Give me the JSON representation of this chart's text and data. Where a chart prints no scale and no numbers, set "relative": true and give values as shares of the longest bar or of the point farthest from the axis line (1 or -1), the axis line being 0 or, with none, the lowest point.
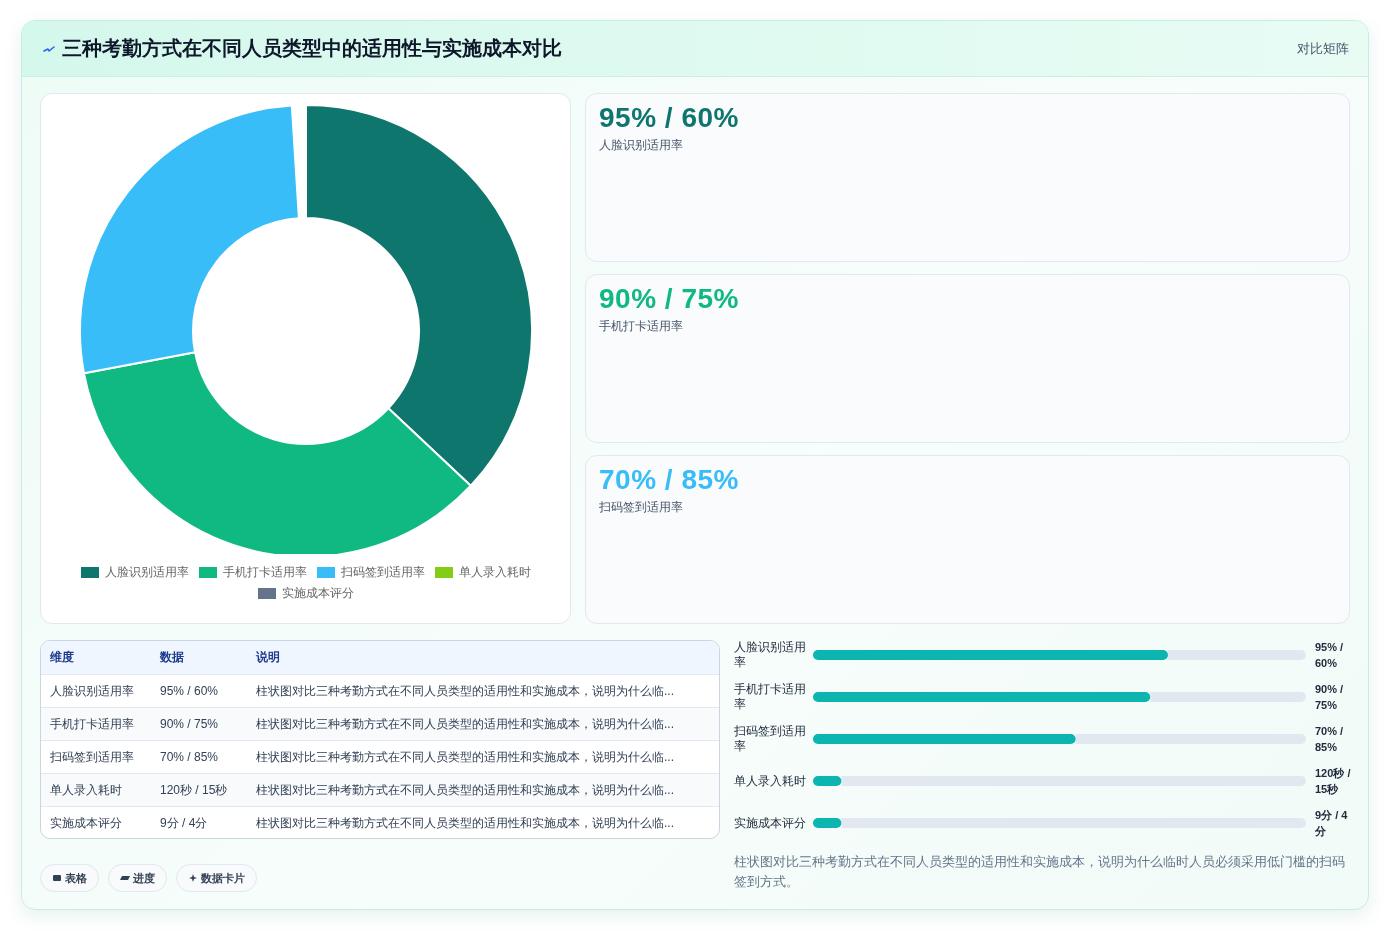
{
  "chart_data": [
    {
      "type": "other",
      "title": "三种考勤方式在不同人员类型中的适用性与实施成本对比",
      "annotations": [
        "对比矩阵"
      ]
    },
    {
      "type": "donut",
      "categories": [
        "人脸识别适用率",
        "手机打卡适用率",
        "扫码签到适用率",
        "单人录入耗时",
        "实施成本评分"
      ],
      "values": [
        37,
        35,
        27,
        null,
        null
      ],
      "colors": [
        "#0f766e",
        "#10b981",
        "#38bdf8",
        "#84cc16",
        "#64748b"
      ],
      "legend": "bottom"
    },
    {
      "type": "other",
      "annotations": [
        "95% / 60%",
        "人脸识别适用率",
        "90% / 75%",
        "手机打卡适用率",
        "70% / 85%",
        "扫码签到适用率"
      ],
      "colors": [
        "#0f766e",
        "#10b981",
        "#38bdf8"
      ]
    },
    {
      "type": "other",
      "annotations": [
        "维度",
        "数据",
        "说明",
        "人脸识别适用率",
        "95% / 60%",
        "柱状图对比三种考勤方式在不同人员类型的适用性和实施成本，说明为什么临...",
        "手机打卡适用率",
        "90% / 75%",
        "柱状图对比三种考勤方式在不同人员类型的适用性和实施成本，说明为什么临...",
        "扫码签到适用率",
        "70% / 85%",
        "柱状图对比三种考勤方式在不同人员类型的适用性和实施成本，说明为什么临...",
        "单人录入耗时",
        "120秒 / 15秒",
        "柱状图对比三种考勤方式在不同人员类型的适用性和实施成本，说明为什么临...",
        "实施成本评分",
        "9分 / 4分",
        "柱状图对比三种考勤方式在不同人员类型的适用性和实施成本，说明为什么临..."
      ]
    },
    {
      "type": "bar",
      "orientation": "horizontal",
      "relative": true,
      "categories": [
        "人脸识别适用率",
        "手机打卡适用率",
        "扫码签到适用率",
        "单人录入耗时",
        "实施成本评分"
      ],
      "values": [
        1,
        0.95,
        0.74,
        0.08,
        0.08
      ],
      "color": "#0cb5b0",
      "annotations": [
        "95% / 60%",
        "90% / 75%",
        "70% / 85%",
        "120秒 / 15秒",
        "9分 / 4分",
        "柱状图对比三种考勤方式在不同人员类型的适用性和实施成本，说明为什么临时人员必须采用低门槛的扫码签到方式。"
      ]
    },
    {
      "type": "other",
      "annotations": [
        "表格",
        "进度",
        "数据卡片"
      ]
    }
  ]
}
